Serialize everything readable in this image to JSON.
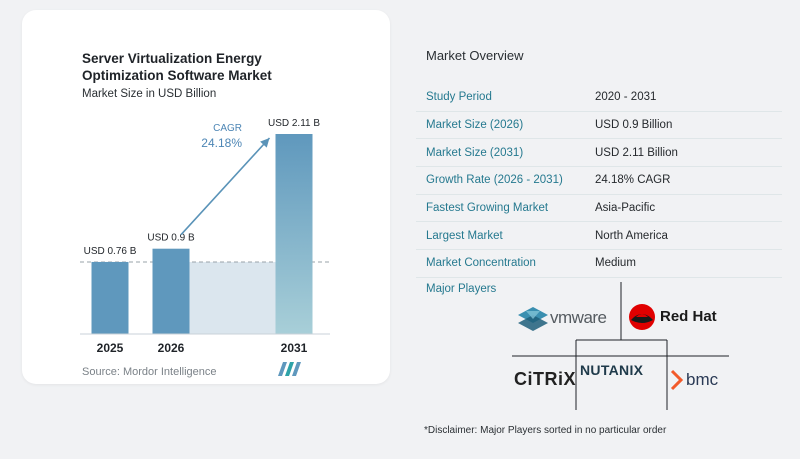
{
  "chart_data": {
    "type": "bar",
    "title": "Server Virtualization Energy Optimization Software Market",
    "subtitle": "Market Size in USD Billion",
    "categories": [
      "2025",
      "2026",
      "2031"
    ],
    "values": [
      0.76,
      0.9,
      2.11
    ],
    "value_labels": [
      "USD 0.76 B",
      "USD 0.9 B",
      "USD 2.11 B"
    ],
    "unit": "USD Billion",
    "cagr_label": "CAGR",
    "cagr_value": "24.18%",
    "colors": {
      "bar_dark": "#5f98bd",
      "bar_light": "#a8cfd8",
      "band": "#dbe6ee",
      "arrow": "#5a93b8",
      "cagr_text": "#4d86b5"
    },
    "grid": false
  },
  "source": "Source:  Mordor Intelligence",
  "overview": {
    "title": "Market Overview",
    "rows": [
      {
        "key": "Study Period",
        "value": "2020 - 2031"
      },
      {
        "key": "Market Size (2026)",
        "value": "USD 0.9 Billion"
      },
      {
        "key": "Market Size (2031)",
        "value": "USD 2.11 Billion"
      },
      {
        "key": "Growth Rate (2026 - 2031)",
        "value": "24.18% CAGR"
      },
      {
        "key": "Fastest Growing Market",
        "value": "Asia-Pacific"
      },
      {
        "key": "Largest Market",
        "value": "North America"
      },
      {
        "key": "Market Concentration",
        "value": "Medium"
      }
    ]
  },
  "players": {
    "title": "Major Players",
    "logos": [
      "vmware",
      "Red Hat",
      "CiTRiX",
      "NUTANIX",
      "bmc"
    ]
  },
  "disclaimer": "*Disclaimer: Major Players sorted in no particular order"
}
